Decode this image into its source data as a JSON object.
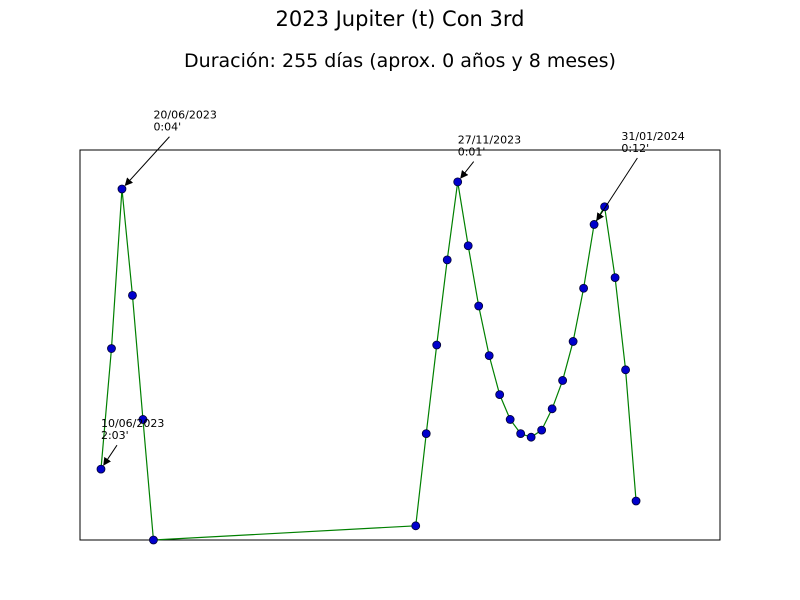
{
  "chart": {
    "title": "2023 Jupiter (t) Con 3rd",
    "subtitle": "Duración: 255 días (aprox. 0 años y 8 meses)"
  },
  "chart_data": {
    "type": "line",
    "title": "2023 Jupiter (t) Con 3rd",
    "subtitle": "Duración: 255 días (aprox. 0 años y 8 meses)",
    "xlabel": "",
    "ylabel": "",
    "grid": false,
    "axes_ticks": false,
    "line_color": "#008000",
    "marker_color": "#0000cc",
    "marker_edge_color": "#000033",
    "xlim": [
      2,
      307
    ],
    "ylim": [
      0.9,
      2.0
    ],
    "series": [
      {
        "x": [
          12,
          17,
          22,
          27,
          32,
          37,
          162,
          167,
          172,
          177,
          182,
          187,
          192,
          197,
          202,
          207,
          212,
          217,
          222,
          227,
          232,
          237,
          242,
          247,
          252,
          257,
          262,
          267
        ],
        "y": [
          1.1,
          1.44,
          1.89,
          1.59,
          1.24,
          0.9,
          0.94,
          1.2,
          1.45,
          1.69,
          1.91,
          1.73,
          1.56,
          1.42,
          1.31,
          1.24,
          1.2,
          1.19,
          1.21,
          1.27,
          1.35,
          1.46,
          1.61,
          1.79,
          1.84,
          1.64,
          1.38,
          1.01
        ]
      }
    ],
    "annotations": [
      {
        "label": "10/06/2023\n2:03'",
        "point_index": 0,
        "text_x": 12,
        "text_y": 1.19
      },
      {
        "label": "20/06/2023\n0:04'",
        "point_index": 2,
        "text_x": 37,
        "text_y": 2.06
      },
      {
        "label": "27/11/2023\n0:01'",
        "point_index": 10,
        "text_x": 182,
        "text_y": 1.99
      },
      {
        "label": "31/01/2024\n0:12'",
        "point_index": 23,
        "text_x": 260,
        "text_y": 2.0
      }
    ]
  }
}
